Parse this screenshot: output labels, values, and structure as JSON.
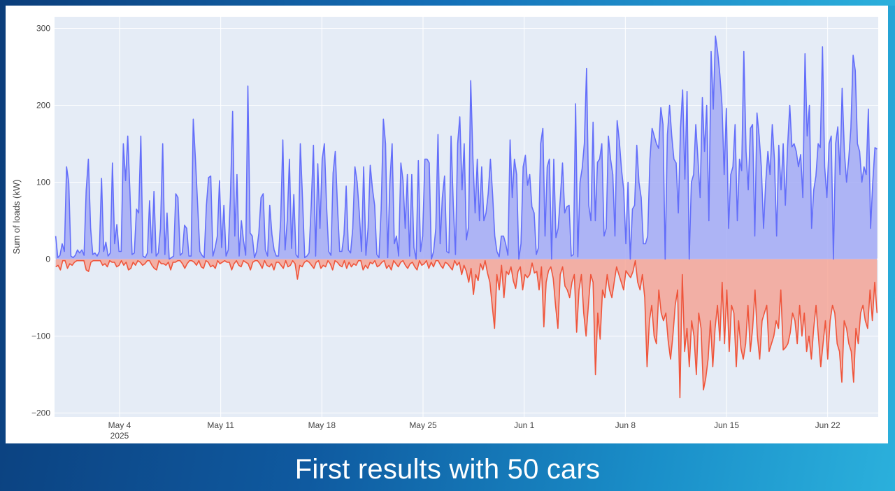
{
  "caption": "First results with 50 cars",
  "chart_data": {
    "type": "area",
    "title": "",
    "xlabel": "",
    "ylabel": "Sum of loads (kW)",
    "ylim": [
      -205,
      315
    ],
    "yticks": [
      300,
      200,
      100,
      0,
      -100,
      -200
    ],
    "ytick_labels": [
      "300",
      "200",
      "100",
      "0",
      "−100",
      "−200"
    ],
    "xlim": [
      "2025-04-29T12:00",
      "2025-06-25T12:00"
    ],
    "xticks": [
      "2025-05-04",
      "2025-05-11",
      "2025-05-18",
      "2025-05-25",
      "2025-06-01",
      "2025-06-08",
      "2025-06-15",
      "2025-06-22"
    ],
    "xtick_labels": [
      "May 4",
      "May 11",
      "May 18",
      "May 25",
      "Jun 1",
      "Jun 8",
      "Jun 15",
      "Jun 22"
    ],
    "xtick_year": "2025",
    "grid": true,
    "legend": "none",
    "colors": {
      "plot_bg": "#e5ecf6",
      "grid": "#ffffff",
      "positive": "#636efa",
      "positive_fill": "#a3aaf5",
      "negative": "#ef553b",
      "negative_fill": "#f4a496"
    },
    "sampling": "peak envelope per ~6 h interval starting 2025-04-29T12:00",
    "series": [
      {
        "values": [
          30,
          2,
          5,
          20,
          10,
          120,
          100,
          4,
          2,
          5,
          12,
          8,
          12,
          5,
          90,
          130,
          40,
          6,
          8,
          4,
          10,
          105,
          10,
          22,
          4,
          8,
          125,
          20,
          45,
          10,
          10,
          150,
          102,
          160,
          88,
          6,
          8,
          65,
          60,
          160,
          4,
          2,
          8,
          76,
          8,
          88,
          4,
          8,
          40,
          150,
          6,
          60,
          0,
          2,
          4,
          85,
          80,
          5,
          8,
          44,
          40,
          4,
          4,
          182,
          130,
          70,
          10,
          5,
          2,
          70,
          106,
          108,
          4,
          15,
          30,
          102,
          15,
          70,
          4,
          12,
          80,
          192,
          30,
          110,
          4,
          50,
          24,
          5,
          225,
          34,
          30,
          2,
          10,
          34,
          80,
          85,
          12,
          4,
          70,
          32,
          12,
          4,
          4,
          50,
          155,
          12,
          50,
          130,
          14,
          84,
          6,
          2,
          150,
          80,
          2,
          4,
          8,
          70,
          148,
          4,
          124,
          40,
          130,
          150,
          70,
          10,
          5,
          112,
          140,
          70,
          10,
          10,
          32,
          95,
          12,
          8,
          40,
          120,
          100,
          60,
          10,
          120,
          5,
          40,
          122,
          92,
          70,
          6,
          2,
          64,
          182,
          150,
          2,
          100,
          150,
          20,
          30,
          4,
          125,
          102,
          40,
          110,
          4,
          110,
          15,
          0,
          128,
          10,
          30,
          130,
          130,
          125,
          0,
          10,
          40,
          162,
          20,
          80,
          108,
          10,
          8,
          160,
          70,
          6,
          150,
          185,
          90,
          150,
          25,
          42,
          232,
          130,
          60,
          130,
          50,
          120,
          50,
          60,
          85,
          130,
          84,
          30,
          10,
          3,
          30,
          30,
          20,
          5,
          155,
          80,
          130,
          110,
          0,
          20,
          120,
          135,
          96,
          110,
          68,
          60,
          6,
          15,
          150,
          170,
          30,
          120,
          130,
          0,
          130,
          28,
          40,
          80,
          125,
          60,
          68,
          70,
          4,
          6,
          202,
          3,
          100,
          118,
          150,
          248,
          70,
          50,
          178,
          50,
          126,
          130,
          150,
          30,
          40,
          160,
          130,
          110,
          30,
          180,
          154,
          116,
          90,
          20,
          100,
          0,
          65,
          70,
          148,
          100,
          80,
          20,
          20,
          30,
          130,
          170,
          160,
          150,
          144,
          197,
          175,
          0,
          162,
          200,
          160,
          130,
          125,
          60,
          170,
          220,
          104,
          218,
          0,
          100,
          110,
          175,
          130,
          80,
          210,
          140,
          200,
          50,
          270,
          195,
          290,
          270,
          240,
          200,
          110,
          196,
          40,
          110,
          120,
          175,
          50,
          130,
          115,
          270,
          140,
          90,
          170,
          175,
          30,
          190,
          160,
          120,
          40,
          100,
          140,
          110,
          175,
          130,
          30,
          148,
          90,
          150,
          70,
          145,
          200,
          146,
          150,
          140,
          120,
          136,
          80,
          267,
          160,
          200,
          40,
          90,
          108,
          150,
          145,
          276,
          120,
          80,
          150,
          160,
          0,
          150,
          172,
          110,
          222,
          140,
          100,
          130,
          170,
          265,
          245,
          150,
          140,
          100,
          120,
          110,
          195,
          40,
          100,
          145,
          143
        ]
      },
      {
        "values": [
          -10,
          -8,
          -14,
          -2,
          -2,
          -12,
          -6,
          -8,
          -4,
          -2,
          -2,
          -2,
          -2,
          -14,
          -16,
          -4,
          -2,
          -2,
          -2,
          -2,
          -8,
          -6,
          -10,
          -2,
          -4,
          -4,
          -10,
          -8,
          -2,
          -8,
          -4,
          -14,
          -12,
          -4,
          -8,
          -2,
          -4,
          -8,
          -6,
          -2,
          -2,
          -8,
          -12,
          -14,
          -2,
          -6,
          -6,
          -8,
          -4,
          -14,
          -4,
          -4,
          -2,
          -2,
          -6,
          -12,
          -6,
          -2,
          -2,
          -4,
          -8,
          -2,
          -10,
          -12,
          -2,
          -4,
          -10,
          -8,
          -12,
          -2,
          -6,
          -4,
          -2,
          -4,
          -4,
          -14,
          -6,
          -2,
          -8,
          -10,
          -2,
          -4,
          -6,
          -14,
          -4,
          -2,
          -2,
          -6,
          -12,
          -2,
          -8,
          -10,
          -6,
          -14,
          -4,
          -4,
          -8,
          -12,
          -2,
          -10,
          -8,
          -2,
          -6,
          -26,
          -8,
          -10,
          -4,
          -2,
          -4,
          -8,
          -12,
          -4,
          -2,
          -12,
          -8,
          -10,
          -2,
          -6,
          -14,
          -2,
          -4,
          -8,
          -10,
          -2,
          -12,
          -4,
          -10,
          -6,
          -8,
          -2,
          -2,
          -14,
          -8,
          -12,
          -4,
          -6,
          -2,
          -10,
          -8,
          -4,
          -2,
          -12,
          -8,
          -14,
          -2,
          -6,
          -10,
          -4,
          -2,
          -8,
          -12,
          -6,
          -4,
          -10,
          -14,
          -2,
          -8,
          -6,
          -2,
          -12,
          -4,
          -10,
          -2,
          -2,
          -8,
          -12,
          -4,
          -6,
          -10,
          -14,
          -2,
          -8,
          -4,
          -20,
          -8,
          -16,
          -30,
          -12,
          -46,
          -20,
          -28,
          -6,
          -14,
          -2,
          -18,
          -30,
          -60,
          -90,
          -20,
          -40,
          -8,
          -50,
          -16,
          -20,
          -10,
          -28,
          -38,
          -16,
          -10,
          -40,
          -20,
          -24,
          -20,
          -5,
          -18,
          -16,
          -40,
          -10,
          -88,
          -30,
          -15,
          -10,
          -25,
          -60,
          -90,
          -20,
          -10,
          -35,
          -40,
          -50,
          -30,
          -20,
          -95,
          -40,
          -20,
          -70,
          -100,
          -60,
          -20,
          -30,
          -150,
          -70,
          -104,
          -40,
          -50,
          -20,
          -40,
          -50,
          -30,
          -10,
          -20,
          -30,
          -40,
          -15,
          -20,
          -24,
          -16,
          -2,
          -30,
          -40,
          -20,
          -50,
          -140,
          -80,
          -60,
          -100,
          -110,
          -40,
          -70,
          -80,
          -70,
          -106,
          -130,
          -100,
          -60,
          -40,
          -180,
          -20,
          -120,
          -90,
          -140,
          -80,
          -100,
          -150,
          -70,
          -90,
          -170,
          -155,
          -130,
          -80,
          -140,
          -90,
          -60,
          -106,
          -30,
          -110,
          -40,
          -120,
          -60,
          -70,
          -140,
          -80,
          -116,
          -130,
          -110,
          -60,
          -120,
          -90,
          -40,
          -100,
          -130,
          -80,
          -70,
          -60,
          -120,
          -110,
          -100,
          -80,
          -90,
          -40,
          -118,
          -115,
          -110,
          -96,
          -70,
          -80,
          -110,
          -60,
          -100,
          -70,
          -120,
          -100,
          -130,
          -90,
          -60,
          -100,
          -140,
          -110,
          -80,
          -130,
          -80,
          -60,
          -70,
          -110,
          -120,
          -160,
          -80,
          -90,
          -110,
          -120,
          -160,
          -90,
          -110,
          -70,
          -60,
          -80,
          -90,
          -40,
          -80,
          -30,
          -70
        ]
      }
    ]
  }
}
